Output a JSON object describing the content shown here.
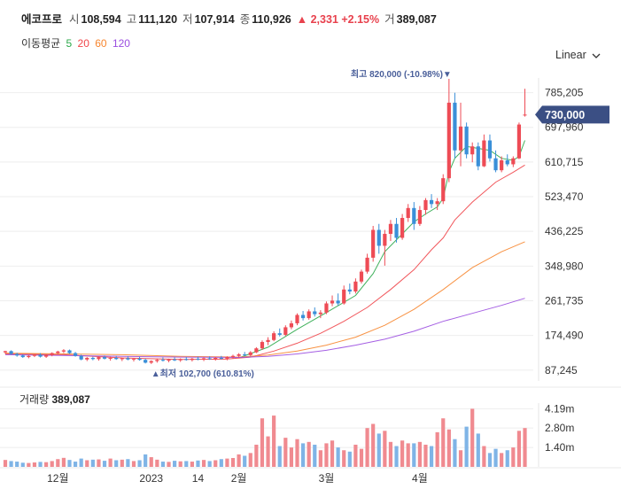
{
  "header": {
    "name": "에코프로",
    "open_label": "시",
    "open": "108,594",
    "high_label": "고",
    "high": "111,120",
    "low_label": "저",
    "low": "107,914",
    "close_label": "종",
    "close": "110,926",
    "change": "▲ 2,331 +2.15%",
    "vol_label": "거",
    "volume": "389,087"
  },
  "ma_legend": {
    "label": "이동평균",
    "periods": [
      {
        "text": "5",
        "color": "#2ba84a"
      },
      {
        "text": "20",
        "color": "#f0454a"
      },
      {
        "text": "60",
        "color": "#f7862f"
      },
      {
        "text": "120",
        "color": "#9b4ee0"
      }
    ]
  },
  "scale_toggle": {
    "label": "Linear",
    "icon": "chevron-down-icon"
  },
  "colors": {
    "up": "#ee4b55",
    "down": "#3a8fd8",
    "grid": "#eeeeee",
    "price_tag": "#3b4f84"
  },
  "chart_data": {
    "type": "candlestick",
    "title": "에코프로",
    "y_ticks": [
      87245,
      174490,
      261735,
      348980,
      436225,
      523470,
      610715,
      697960,
      785205
    ],
    "y_tick_labels": [
      "87,245",
      "174,490",
      "261,735",
      "348,980",
      "436,225",
      "523,470",
      "610,715",
      "697,960",
      "785,205"
    ],
    "ylim": [
      60000,
      840000
    ],
    "x_tick_labels": [
      {
        "index": 9,
        "label": "12월"
      },
      {
        "index": 25,
        "label": "2023"
      },
      {
        "index": 33,
        "label": "14"
      },
      {
        "index": 40,
        "label": "2월"
      },
      {
        "index": 55,
        "label": "3월"
      },
      {
        "index": 71,
        "label": "4월"
      }
    ],
    "current_price": {
      "value": 730000,
      "label": "730,000"
    },
    "annotations": {
      "high": {
        "index": 76,
        "value": 820000,
        "text": "최고 820,000 (-10.98%)▼"
      },
      "low": {
        "index": 25,
        "value": 102700,
        "text": "▲최저 102,700 (610.81%)"
      }
    },
    "candles": [
      [
        132000,
        136000,
        128000,
        135000
      ],
      [
        135000,
        137000,
        126000,
        128000
      ],
      [
        128000,
        131000,
        121000,
        124000
      ],
      [
        124000,
        127000,
        118000,
        120000
      ],
      [
        120000,
        125000,
        117000,
        123000
      ],
      [
        123000,
        128000,
        120000,
        126000
      ],
      [
        126000,
        130000,
        119000,
        121000
      ],
      [
        121000,
        127000,
        118000,
        125000
      ],
      [
        125000,
        132000,
        122000,
        130000
      ],
      [
        130000,
        136000,
        127000,
        134000
      ],
      [
        134000,
        140000,
        130000,
        137000
      ],
      [
        137000,
        139000,
        128000,
        130000
      ],
      [
        130000,
        133000,
        121000,
        123000
      ],
      [
        123000,
        126000,
        112000,
        114000
      ],
      [
        114000,
        120000,
        110000,
        118000
      ],
      [
        118000,
        121000,
        112000,
        115000
      ],
      [
        115000,
        122000,
        111000,
        120000
      ],
      [
        120000,
        124000,
        114000,
        116000
      ],
      [
        116000,
        121000,
        111000,
        118000
      ],
      [
        118000,
        123000,
        113000,
        115000
      ],
      [
        115000,
        119000,
        110000,
        117000
      ],
      [
        117000,
        122000,
        112000,
        114000
      ],
      [
        114000,
        118000,
        109000,
        116000
      ],
      [
        116000,
        121000,
        111000,
        113000
      ],
      [
        113000,
        116000,
        104000,
        106000
      ],
      [
        106000,
        112000,
        102700,
        110000
      ],
      [
        110000,
        116000,
        106000,
        113000
      ],
      [
        113000,
        119000,
        109000,
        111000
      ],
      [
        111000,
        116000,
        107000,
        114000
      ],
      [
        114000,
        119000,
        110000,
        112000
      ],
      [
        112000,
        117000,
        108000,
        115000
      ],
      [
        115000,
        120000,
        111000,
        113000
      ],
      [
        113000,
        118000,
        109000,
        116000
      ],
      [
        116000,
        121000,
        112000,
        114000
      ],
      [
        114000,
        119000,
        110000,
        117000
      ],
      [
        117000,
        122000,
        113000,
        115000
      ],
      [
        115000,
        120000,
        111000,
        118000
      ],
      [
        118000,
        123000,
        114000,
        116000
      ],
      [
        116000,
        122000,
        112000,
        120000
      ],
      [
        120000,
        126000,
        116000,
        123000
      ],
      [
        123000,
        130000,
        119000,
        127000
      ],
      [
        127000,
        133000,
        122000,
        125000
      ],
      [
        125000,
        135000,
        122000,
        132000
      ],
      [
        132000,
        145000,
        130000,
        142000
      ],
      [
        142000,
        162000,
        138000,
        158000
      ],
      [
        158000,
        170000,
        150000,
        163000
      ],
      [
        163000,
        185000,
        160000,
        180000
      ],
      [
        180000,
        192000,
        172000,
        176000
      ],
      [
        176000,
        200000,
        173000,
        195000
      ],
      [
        195000,
        212000,
        190000,
        205000
      ],
      [
        205000,
        230000,
        200000,
        226000
      ],
      [
        226000,
        236000,
        212000,
        218000
      ],
      [
        218000,
        240000,
        214000,
        235000
      ],
      [
        235000,
        245000,
        222000,
        228000
      ],
      [
        228000,
        238000,
        218000,
        232000
      ],
      [
        232000,
        260000,
        228000,
        255000
      ],
      [
        255000,
        275000,
        248000,
        262000
      ],
      [
        262000,
        280000,
        250000,
        255000
      ],
      [
        255000,
        300000,
        252000,
        290000
      ],
      [
        290000,
        305000,
        278000,
        285000
      ],
      [
        285000,
        318000,
        280000,
        310000
      ],
      [
        310000,
        340000,
        305000,
        335000
      ],
      [
        335000,
        380000,
        330000,
        370000
      ],
      [
        370000,
        450000,
        360000,
        440000
      ],
      [
        440000,
        455000,
        380000,
        400000
      ],
      [
        400000,
        440000,
        350000,
        430000
      ],
      [
        430000,
        465000,
        412000,
        455000
      ],
      [
        455000,
        470000,
        408000,
        420000
      ],
      [
        420000,
        480000,
        415000,
        470000
      ],
      [
        470000,
        505000,
        460000,
        495000
      ],
      [
        495000,
        510000,
        440000,
        455000
      ],
      [
        455000,
        500000,
        450000,
        490000
      ],
      [
        490000,
        520000,
        478000,
        515000
      ],
      [
        515000,
        530000,
        495000,
        505000
      ],
      [
        505000,
        520000,
        490000,
        512000
      ],
      [
        512000,
        580000,
        505000,
        570000
      ],
      [
        570000,
        820000,
        560000,
        760000
      ],
      [
        760000,
        785000,
        620000,
        640000
      ],
      [
        640000,
        760000,
        600000,
        700000
      ],
      [
        700000,
        710000,
        620000,
        630000
      ],
      [
        630000,
        660000,
        610000,
        650000
      ],
      [
        650000,
        660000,
        590000,
        600000
      ],
      [
        600000,
        680000,
        598000,
        665000
      ],
      [
        665000,
        680000,
        612000,
        620000
      ],
      [
        620000,
        640000,
        585000,
        590000
      ],
      [
        590000,
        625000,
        585000,
        615000
      ],
      [
        615000,
        630000,
        600000,
        605000
      ],
      [
        605000,
        625000,
        598000,
        620000
      ],
      [
        620000,
        710000,
        618000,
        705000
      ],
      [
        730000,
        795000,
        725000,
        730000
      ]
    ],
    "ma_lines": [
      {
        "period": 5,
        "values": [
          [
            40,
            118000
          ],
          [
            45,
            145000
          ],
          [
            50,
            190000
          ],
          [
            55,
            232000
          ],
          [
            60,
            275000
          ],
          [
            63,
            330000
          ],
          [
            65,
            385000
          ],
          [
            68,
            430000
          ],
          [
            70,
            460000
          ],
          [
            72,
            480000
          ],
          [
            74,
            498000
          ],
          [
            75,
            520000
          ],
          [
            76,
            585000
          ],
          [
            77,
            620000
          ],
          [
            79,
            650000
          ],
          [
            81,
            645000
          ],
          [
            83,
            640000
          ],
          [
            85,
            620000
          ],
          [
            87,
            615000
          ],
          [
            88,
            625000
          ],
          [
            89,
            665000
          ]
        ]
      },
      {
        "period": 20,
        "values": [
          [
            0,
            128000
          ],
          [
            10,
            126000
          ],
          [
            20,
            118000
          ],
          [
            30,
            114000
          ],
          [
            38,
            115000
          ],
          [
            42,
            120000
          ],
          [
            46,
            135000
          ],
          [
            50,
            155000
          ],
          [
            54,
            180000
          ],
          [
            58,
            210000
          ],
          [
            62,
            245000
          ],
          [
            66,
            290000
          ],
          [
            70,
            340000
          ],
          [
            73,
            390000
          ],
          [
            75,
            420000
          ],
          [
            77,
            465000
          ],
          [
            80,
            510000
          ],
          [
            84,
            560000
          ],
          [
            87,
            585000
          ],
          [
            89,
            603000
          ]
        ]
      },
      {
        "period": 60,
        "values": [
          [
            0,
            130000
          ],
          [
            10,
            128000
          ],
          [
            20,
            126000
          ],
          [
            30,
            122000
          ],
          [
            40,
            120000
          ],
          [
            45,
            125000
          ],
          [
            50,
            135000
          ],
          [
            55,
            150000
          ],
          [
            60,
            170000
          ],
          [
            65,
            200000
          ],
          [
            70,
            240000
          ],
          [
            75,
            290000
          ],
          [
            80,
            345000
          ],
          [
            85,
            385000
          ],
          [
            89,
            410000
          ]
        ]
      },
      {
        "period": 120,
        "values": [
          [
            0,
            126000
          ],
          [
            10,
            124000
          ],
          [
            20,
            122000
          ],
          [
            30,
            120000
          ],
          [
            40,
            119000
          ],
          [
            45,
            122000
          ],
          [
            50,
            128000
          ],
          [
            55,
            137000
          ],
          [
            60,
            150000
          ],
          [
            65,
            165000
          ],
          [
            70,
            185000
          ],
          [
            75,
            210000
          ],
          [
            80,
            230000
          ],
          [
            85,
            250000
          ],
          [
            89,
            268000
          ]
        ]
      }
    ],
    "volume": {
      "title": "거래량",
      "value": "389,087",
      "y_tick_labels": [
        "1.40m",
        "2.80m",
        "4.19m"
      ],
      "y_ticks": [
        1400000,
        2800000,
        4190000
      ],
      "ylim": [
        0,
        4600000
      ],
      "bars": [
        500000,
        420000,
        380000,
        300000,
        280000,
        320000,
        360000,
        340000,
        420000,
        560000,
        650000,
        500000,
        380000,
        600000,
        480000,
        520000,
        540000,
        440000,
        600000,
        480000,
        520000,
        560000,
        420000,
        480000,
        900000,
        700000,
        520000,
        380000,
        360000,
        440000,
        400000,
        420000,
        380000,
        460000,
        500000,
        420000,
        480000,
        560000,
        600000,
        640000,
        900000,
        800000,
        1000000,
        1600000,
        3500000,
        2200000,
        3700000,
        1500000,
        2100000,
        1400000,
        2000000,
        1700000,
        1800000,
        1600000,
        1200000,
        1700000,
        1900000,
        1400000,
        1200000,
        1100000,
        1600000,
        1300000,
        2800000,
        3100000,
        2400000,
        2600000,
        1800000,
        1500000,
        1900000,
        1700000,
        1700000,
        1800000,
        1600000,
        1500000,
        2500000,
        3500000,
        2700000,
        2000000,
        1200000,
        2900000,
        4190000,
        2400000,
        1500000,
        1000000,
        1300000,
        1000000,
        1200000,
        1400000,
        2600000,
        2800000
      ]
    }
  }
}
